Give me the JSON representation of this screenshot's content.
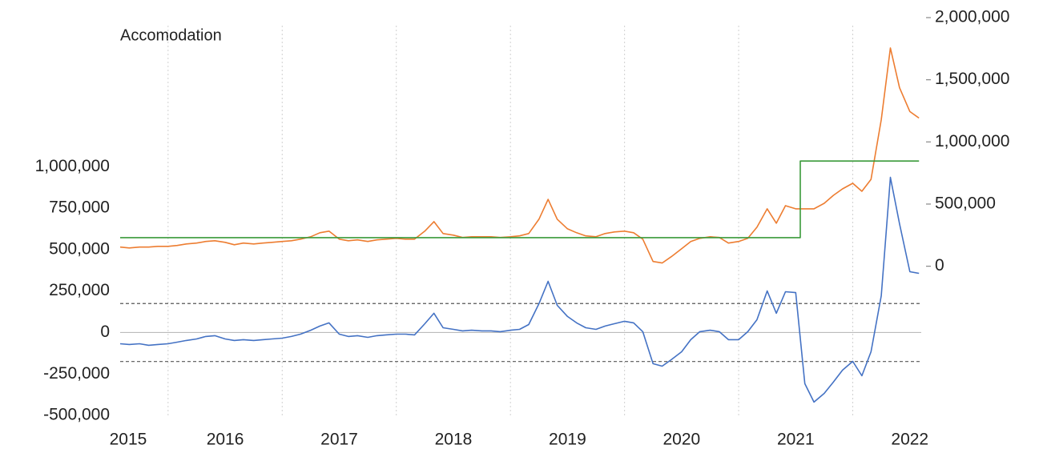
{
  "chart_data": {
    "type": "line",
    "title": "Accomodation",
    "x": [
      2015.58,
      2015.66,
      2015.75,
      2015.83,
      2015.91,
      2016.0,
      2016.08,
      2016.16,
      2016.25,
      2016.33,
      2016.41,
      2016.5,
      2016.58,
      2016.66,
      2016.75,
      2016.83,
      2016.91,
      2017.0,
      2017.08,
      2017.16,
      2017.25,
      2017.33,
      2017.41,
      2017.5,
      2017.58,
      2017.66,
      2017.75,
      2017.83,
      2017.91,
      2018.0,
      2018.08,
      2018.16,
      2018.25,
      2018.33,
      2018.41,
      2018.5,
      2018.58,
      2018.66,
      2018.75,
      2018.83,
      2018.91,
      2019.0,
      2019.08,
      2019.16,
      2019.25,
      2019.33,
      2019.41,
      2019.5,
      2019.58,
      2019.66,
      2019.75,
      2019.83,
      2019.91,
      2020.0,
      2020.08,
      2020.16,
      2020.25,
      2020.33,
      2020.41,
      2020.5,
      2020.58,
      2020.66,
      2020.75,
      2020.83,
      2020.91,
      2021.0,
      2021.08,
      2021.16,
      2021.25,
      2021.33,
      2021.41,
      2021.5,
      2021.58,
      2021.66,
      2021.75,
      2021.83,
      2021.91,
      2022.0,
      2022.08,
      2022.16,
      2022.25,
      2022.33,
      2022.41,
      2022.5,
      2022.58
    ],
    "series": [
      {
        "color": "#4472c4",
        "axis": "y",
        "values": [
          -68000,
          -72000,
          -68000,
          -77000,
          -72000,
          -68000,
          -58000,
          -48000,
          -39000,
          -24000,
          -19000,
          -39000,
          -48000,
          -43000,
          -48000,
          -43000,
          -39000,
          -34000,
          -24000,
          -10000,
          14000,
          39000,
          58000,
          -10000,
          -24000,
          -19000,
          -29000,
          -19000,
          -14000,
          -10000,
          -10000,
          -14000,
          53000,
          116000,
          29000,
          19000,
          10000,
          14000,
          10000,
          10000,
          5000,
          14000,
          19000,
          48000,
          174000,
          309000,
          164000,
          97000,
          58000,
          29000,
          19000,
          39000,
          53000,
          68000,
          58000,
          5000,
          -188000,
          -203000,
          -164000,
          -116000,
          -43000,
          5000,
          14000,
          5000,
          -43000,
          -43000,
          5000,
          77000,
          251000,
          116000,
          246000,
          241000,
          -309000,
          -420000,
          -367000,
          -299000,
          -227000,
          -174000,
          -261000,
          -116000,
          222000,
          936000,
          656000,
          367000,
          357000
        ]
      },
      {
        "color": "#ed7d31",
        "axis": "y2",
        "values": [
          154000,
          147000,
          154000,
          154000,
          160000,
          160000,
          167000,
          179000,
          186000,
          199000,
          205000,
          192000,
          173000,
          186000,
          179000,
          186000,
          192000,
          199000,
          205000,
          218000,
          237000,
          269000,
          282000,
          218000,
          205000,
          212000,
          199000,
          212000,
          218000,
          224000,
          218000,
          218000,
          282000,
          359000,
          263000,
          250000,
          231000,
          237000,
          237000,
          237000,
          231000,
          237000,
          244000,
          263000,
          378000,
          538000,
          378000,
          301000,
          269000,
          244000,
          237000,
          263000,
          276000,
          282000,
          269000,
          218000,
          38000,
          26000,
          77000,
          141000,
          199000,
          224000,
          237000,
          231000,
          186000,
          199000,
          224000,
          314000,
          462000,
          346000,
          487000,
          462000,
          462000,
          462000,
          506000,
          570000,
          622000,
          667000,
          603000,
          699000,
          1179000,
          1756000,
          1436000,
          1244000,
          1192000
        ]
      },
      {
        "color": "#3a9a3a",
        "axis": "y2",
        "x": [
          2015.58,
          2021.54,
          2021.54,
          2022.58
        ],
        "values": [
          230000,
          230000,
          846000,
          846000
        ]
      }
    ],
    "reference_lines": [
      {
        "value": 175000,
        "style": "dashed"
      },
      {
        "value": -175000,
        "style": "dashed"
      },
      {
        "value": 0,
        "style": "solid"
      }
    ],
    "xlim": [
      2015.58,
      2022.6
    ],
    "xticks": [
      {
        "value": 2015.65,
        "label": "2015"
      },
      {
        "value": 2016.5,
        "label": "2016"
      },
      {
        "value": 2017.5,
        "label": "2017"
      },
      {
        "value": 2018.5,
        "label": "2018"
      },
      {
        "value": 2019.5,
        "label": "2019"
      },
      {
        "value": 2020.5,
        "label": "2020"
      },
      {
        "value": 2021.5,
        "label": "2021"
      },
      {
        "value": 2022.5,
        "label": "2022"
      }
    ],
    "xgrid": [
      2016,
      2017,
      2018,
      2019,
      2020,
      2021,
      2022
    ],
    "ylim": [
      -500000,
      1900000
    ],
    "yticks": [
      {
        "value": -500000,
        "label": "-500,000"
      },
      {
        "value": -250000,
        "label": "-250,000"
      },
      0,
      {
        "value": 250000,
        "label": "250,000"
      },
      {
        "value": 500000,
        "label": "500,000"
      },
      {
        "value": 750000,
        "label": "750,000"
      },
      {
        "value": 1000000,
        "label": "1,000,000"
      }
    ],
    "y2lim": [
      -1200000,
      2000000
    ],
    "y2ticks": [
      0,
      {
        "value": 500000,
        "label": "500,000"
      },
      {
        "value": 1000000,
        "label": "1,000,000"
      },
      {
        "value": 1500000,
        "label": "1,500,000"
      },
      {
        "value": 2000000,
        "label": "2,000,000"
      }
    ]
  }
}
